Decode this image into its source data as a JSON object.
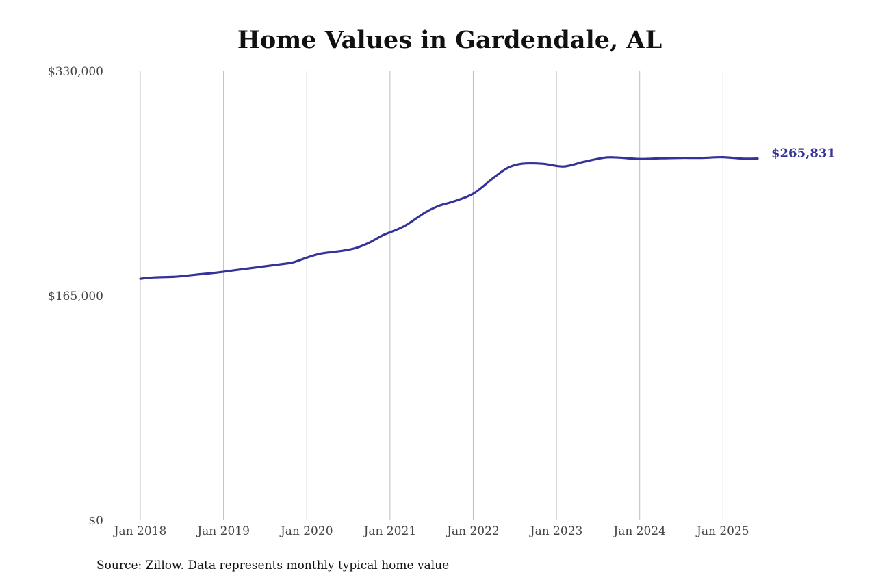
{
  "chart_data": {
    "type": "line",
    "title": "Home Values in Gardendale, AL",
    "xlabel": "",
    "ylabel": "",
    "ylim": [
      0,
      330000
    ],
    "yticks": [
      {
        "value": 0,
        "label": "$0"
      },
      {
        "value": 165000,
        "label": "$165,000"
      },
      {
        "value": 330000,
        "label": "$330,000"
      }
    ],
    "xticks": [
      {
        "value": "2018-01",
        "label": "Jan 2018"
      },
      {
        "value": "2019-01",
        "label": "Jan 2019"
      },
      {
        "value": "2020-01",
        "label": "Jan 2020"
      },
      {
        "value": "2021-01",
        "label": "Jan 2021"
      },
      {
        "value": "2022-01",
        "label": "Jan 2022"
      },
      {
        "value": "2023-01",
        "label": "Jan 2023"
      },
      {
        "value": "2024-01",
        "label": "Jan 2024"
      },
      {
        "value": "2025-01",
        "label": "Jan 2025"
      }
    ],
    "xlim": [
      "2018-01",
      "2025-06"
    ],
    "grid": {
      "vertical": true,
      "horizontal": false
    },
    "line_color": "#35339a",
    "series": [
      {
        "values": [
          {
            "x": "2018-01",
            "y": 177500
          },
          {
            "x": "2018-03",
            "y": 178500
          },
          {
            "x": "2018-06",
            "y": 179000
          },
          {
            "x": "2018-09",
            "y": 180500
          },
          {
            "x": "2018-12",
            "y": 182000
          },
          {
            "x": "2019-03",
            "y": 184000
          },
          {
            "x": "2019-06",
            "y": 186000
          },
          {
            "x": "2019-09",
            "y": 188000
          },
          {
            "x": "2019-11",
            "y": 189500
          },
          {
            "x": "2020-01",
            "y": 193000
          },
          {
            "x": "2020-03",
            "y": 196000
          },
          {
            "x": "2020-06",
            "y": 198000
          },
          {
            "x": "2020-08",
            "y": 200000
          },
          {
            "x": "2020-10",
            "y": 204000
          },
          {
            "x": "2020-12",
            "y": 209500
          },
          {
            "x": "2021-03",
            "y": 216000
          },
          {
            "x": "2021-06",
            "y": 226000
          },
          {
            "x": "2021-08",
            "y": 231000
          },
          {
            "x": "2021-10",
            "y": 234000
          },
          {
            "x": "2022-01",
            "y": 240000
          },
          {
            "x": "2022-04",
            "y": 252000
          },
          {
            "x": "2022-06",
            "y": 259000
          },
          {
            "x": "2022-08",
            "y": 262000
          },
          {
            "x": "2022-11",
            "y": 262000
          },
          {
            "x": "2023-02",
            "y": 260000
          },
          {
            "x": "2023-05",
            "y": 263500
          },
          {
            "x": "2023-08",
            "y": 266500
          },
          {
            "x": "2023-10",
            "y": 266500
          },
          {
            "x": "2024-01",
            "y": 265500
          },
          {
            "x": "2024-04",
            "y": 266000
          },
          {
            "x": "2024-07",
            "y": 266300
          },
          {
            "x": "2024-10",
            "y": 266300
          },
          {
            "x": "2025-01",
            "y": 266800
          },
          {
            "x": "2025-04",
            "y": 265700
          },
          {
            "x": "2025-06",
            "y": 265831
          }
        ]
      }
    ],
    "end_label": "$265,831"
  },
  "source_note": "Source: Zillow. Data represents monthly typical home value"
}
